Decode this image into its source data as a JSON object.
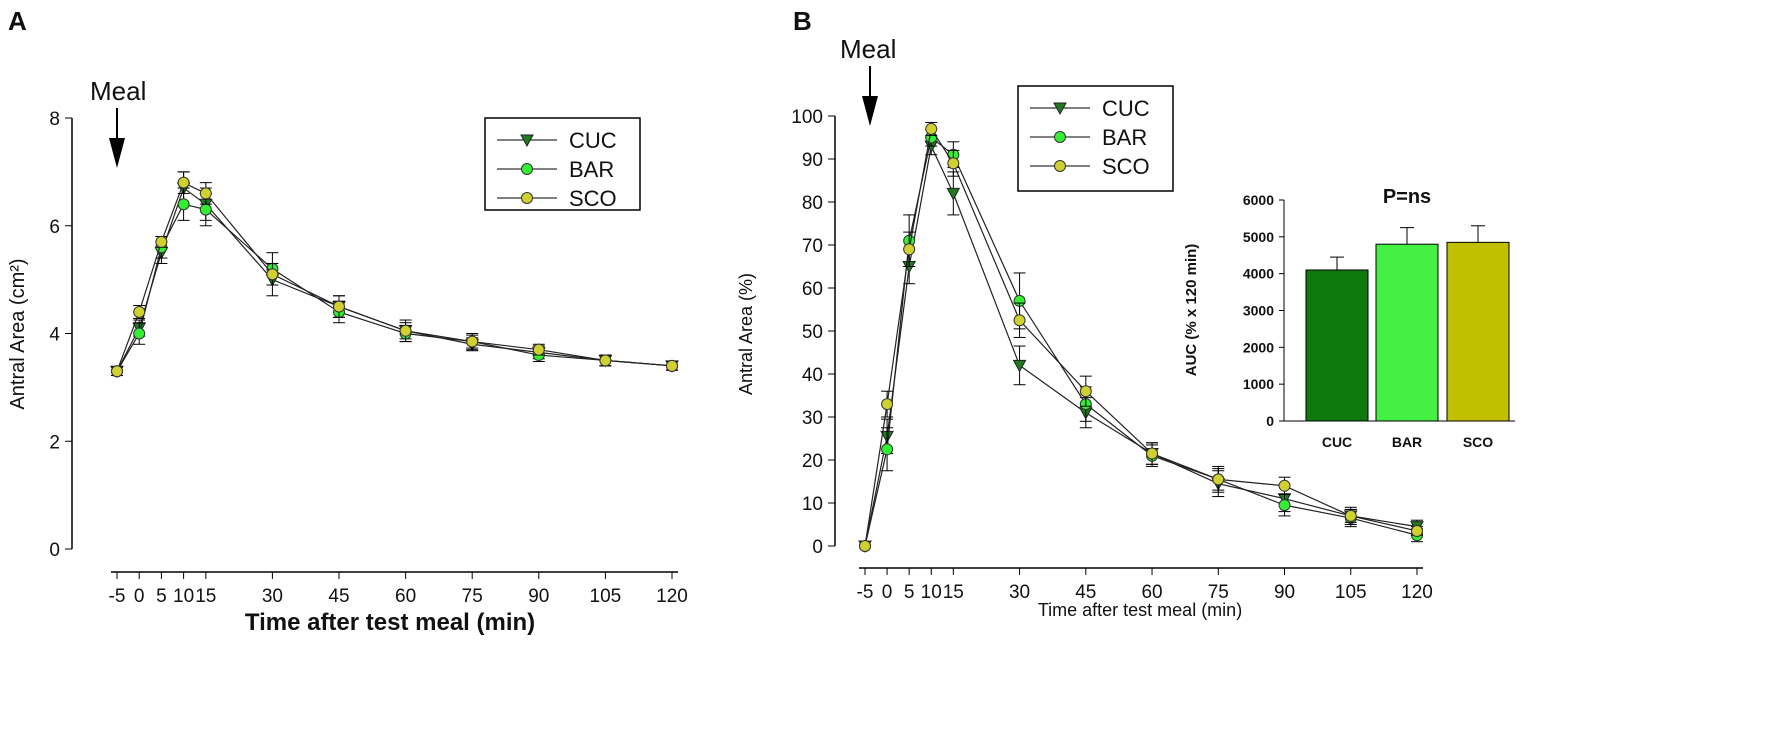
{
  "chart_data": [
    {
      "type": "line",
      "panel_label": "A",
      "annotation": "Meal",
      "xlabel": "Time after test meal (min)",
      "ylabel": "Antral Area (cm²)",
      "x": [
        -5,
        0,
        5,
        10,
        15,
        30,
        45,
        60,
        75,
        90,
        105,
        120
      ],
      "x_tick_labels": [
        "-5",
        "0",
        "5",
        "10",
        "15",
        "30",
        "45",
        "60",
        "75",
        "90",
        "105",
        "120"
      ],
      "ylim": [
        0,
        8
      ],
      "y_ticks": [
        "0",
        "2",
        "4",
        "6",
        "8"
      ],
      "legend_position": "top-right",
      "series": [
        {
          "name": "CUC",
          "color": "#1e7b1e",
          "marker": "triangle-down",
          "values": [
            3.3,
            4.1,
            5.5,
            6.7,
            6.4,
            5.0,
            4.5,
            4.05,
            3.8,
            3.65,
            3.5,
            3.4
          ],
          "error": [
            0.08,
            0.15,
            0.2,
            0.3,
            0.3,
            0.3,
            0.2,
            0.15,
            0.12,
            0.12,
            0.1,
            0.08
          ]
        },
        {
          "name": "BAR",
          "color": "#33ee33",
          "marker": "circle",
          "values": [
            3.3,
            4.0,
            5.6,
            6.4,
            6.3,
            5.2,
            4.4,
            4.0,
            3.85,
            3.6,
            3.5,
            3.4
          ],
          "error": [
            0.08,
            0.2,
            0.2,
            0.3,
            0.3,
            0.3,
            0.2,
            0.15,
            0.12,
            0.12,
            0.1,
            0.08
          ]
        },
        {
          "name": "SCO",
          "color": "#d0d030",
          "marker": "circle",
          "values": [
            3.3,
            4.4,
            5.7,
            6.8,
            6.6,
            5.1,
            4.5,
            4.05,
            3.85,
            3.7,
            3.5,
            3.4
          ],
          "error": [
            0.08,
            0.12,
            0.1,
            0.2,
            0.2,
            0.2,
            0.2,
            0.2,
            0.15,
            0.1,
            0.1,
            0.08
          ]
        }
      ]
    },
    {
      "type": "line",
      "panel_label": "B",
      "annotation": "Meal",
      "xlabel": "Time after test meal (min)",
      "ylabel": "Antral Area (%)",
      "x": [
        -5,
        0,
        5,
        10,
        15,
        30,
        45,
        60,
        75,
        90,
        105,
        120
      ],
      "x_tick_labels": [
        "-5",
        "0",
        "5",
        "10",
        "15",
        "30",
        "45",
        "60",
        "75",
        "90",
        "105",
        "120"
      ],
      "ylim": [
        0,
        100
      ],
      "y_ticks": [
        "0",
        "10",
        "20",
        "30",
        "40",
        "50",
        "60",
        "70",
        "80",
        "90",
        "100"
      ],
      "legend_position": "top-left",
      "series": [
        {
          "name": "CUC",
          "color": "#1e7b1e",
          "marker": "triangle-down",
          "values": [
            0,
            25.5,
            65,
            93,
            82,
            42,
            31,
            21.5,
            14.5,
            11,
            7,
            4.5
          ],
          "error": [
            0,
            4,
            4,
            2,
            5,
            4.5,
            3.5,
            2.5,
            3,
            3,
            2,
            1.5
          ]
        },
        {
          "name": "BAR",
          "color": "#33ee33",
          "marker": "circle",
          "values": [
            0,
            22.5,
            71,
            95,
            91,
            57,
            33,
            21,
            15.5,
            9.5,
            6.5,
            2.5
          ],
          "error": [
            0,
            5,
            6,
            2,
            3,
            6.5,
            4,
            2.5,
            3,
            2.5,
            2,
            1.5
          ]
        },
        {
          "name": "SCO",
          "color": "#d0d030",
          "marker": "circle",
          "values": [
            0,
            33,
            69,
            97,
            89,
            52.5,
            36,
            21.5,
            15.5,
            14,
            7,
            3.5
          ],
          "error": [
            0,
            3,
            4,
            1.5,
            3,
            4,
            3.5,
            2.5,
            2.5,
            2,
            1.5,
            1
          ]
        }
      ]
    },
    {
      "type": "bar",
      "title": "P=ns",
      "ylabel": "AUC (% x 120 min)",
      "categories": [
        "CUC",
        "BAR",
        "SCO"
      ],
      "values": [
        4100,
        4800,
        4850
      ],
      "error": [
        350,
        450,
        450
      ],
      "colors": [
        "#0e7a0e",
        "#44f044",
        "#c0c000"
      ],
      "ylim": [
        0,
        6000
      ],
      "y_ticks": [
        "0",
        "1000",
        "2000",
        "3000",
        "4000",
        "5000",
        "6000"
      ]
    }
  ]
}
